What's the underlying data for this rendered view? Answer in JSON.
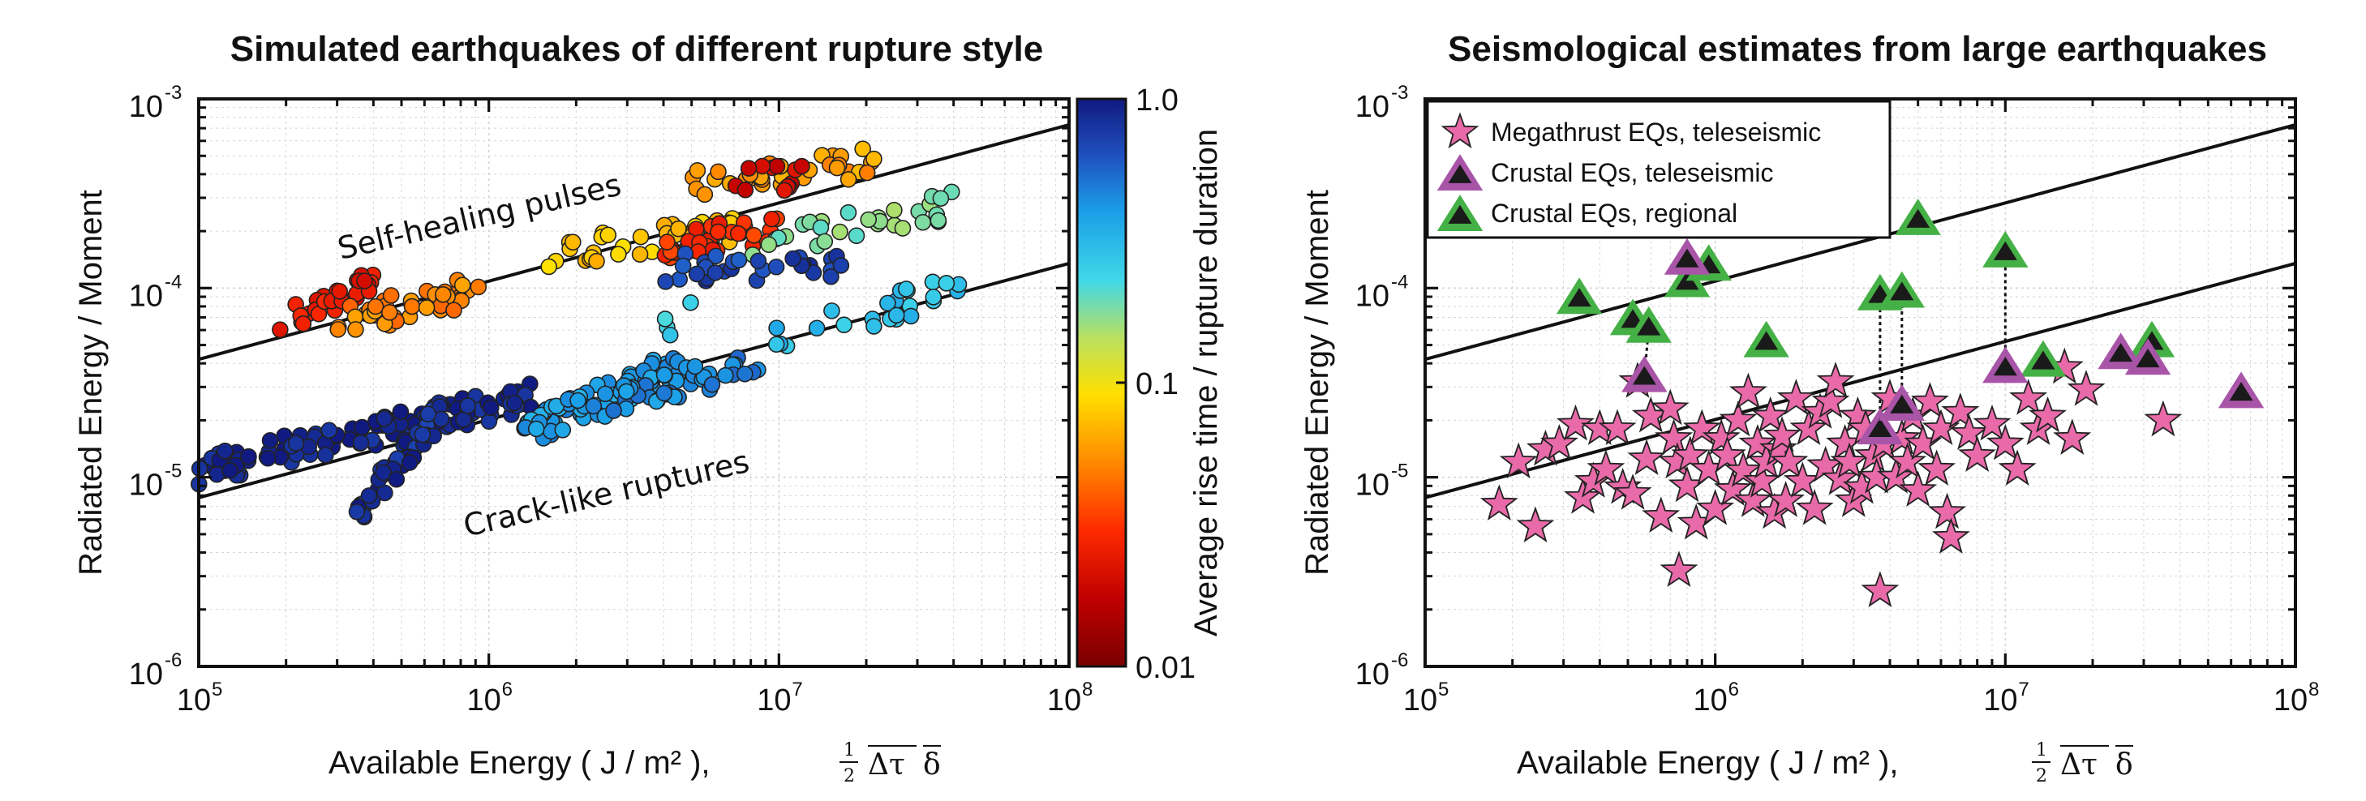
{
  "chart_data": [
    {
      "type": "scatter",
      "title": "Simulated earthquakes of different rupture style",
      "xlabel": "Available Energy ( J / m² ),",
      "xlabel_formula": "½ Δτ δ",
      "ylabel": "Radiated Energy / Moment",
      "xscale": "log",
      "yscale": "log",
      "xlim": [
        100000,
        100000000
      ],
      "ylim": [
        1e-06,
        0.001
      ],
      "grid": true,
      "x_tick_labels": [
        {
          "value": 100000,
          "base": "10",
          "exp": "5"
        },
        {
          "value": 1000000,
          "base": "10",
          "exp": "6"
        },
        {
          "value": 10000000,
          "base": "10",
          "exp": "7"
        },
        {
          "value": 100000000,
          "base": "10",
          "exp": "8"
        }
      ],
      "y_tick_labels": [
        {
          "value": 1e-06,
          "base": "10",
          "exp": "-6"
        },
        {
          "value": 1e-05,
          "base": "10",
          "exp": "-5"
        },
        {
          "value": 0.0001,
          "base": "10",
          "exp": "-4"
        },
        {
          "value": 0.001,
          "base": "10",
          "exp": "-3"
        }
      ],
      "colorbar": {
        "label": "Average rise time / rupture duration",
        "scale": "log",
        "range": [
          0.01,
          1.0
        ],
        "tick_labels": [
          {
            "value": 1.0,
            "label": "1.0"
          },
          {
            "value": 0.1,
            "label": "0.1"
          },
          {
            "value": 0.01,
            "label": "0.01"
          }
        ]
      },
      "reference_lines": [
        {
          "x": [
            100000,
            100000000
          ],
          "y": [
            4.2e-05,
            0.00073
          ]
        },
        {
          "x": [
            100000,
            100000000
          ],
          "y": [
            7.8e-06,
            0.000135
          ]
        }
      ],
      "annotations": [
        "Self-healing pulses",
        "Crack-like ruptures"
      ],
      "clusters": [
        {
          "x_range": [
            190000,
            400000
          ],
          "y_start": 6.5e-05,
          "y_end": 0.00011,
          "c": 0.025,
          "n": 30
        },
        {
          "x_range": [
            300000,
            1000000
          ],
          "y_start": 6.6e-05,
          "y_end": 0.0001,
          "c": 0.05,
          "n": 40
        },
        {
          "x_range": [
            1600000,
            7000000
          ],
          "y_start": 0.00015,
          "y_end": 0.00021,
          "c": 0.075,
          "n": 40
        },
        {
          "x_range": [
            4000000,
            10000000
          ],
          "y_start": 0.00017,
          "y_end": 0.00021,
          "c": 0.03,
          "n": 30
        },
        {
          "x_range": [
            5000000,
            22000000
          ],
          "y_start": 0.00035,
          "y_end": 0.00047,
          "c": 0.06,
          "n": 35
        },
        {
          "x_range": [
            7000000,
            12000000
          ],
          "y_start": 0.00037,
          "y_end": 0.0004,
          "c": 0.02,
          "n": 12
        },
        {
          "x_range": [
            8000000,
            40000000
          ],
          "y_start": 0.00016,
          "y_end": 0.00028,
          "c": 0.17,
          "n": 30
        },
        {
          "x_range": [
            4000000,
            18000000
          ],
          "y_start": 0.00013,
          "y_end": 0.00013,
          "c": 0.7,
          "n": 30
        },
        {
          "x_range": [
            100000,
            1500000
          ],
          "y_start": 1.1e-05,
          "y_end": 2.7e-05,
          "c": 0.95,
          "n": 110
        },
        {
          "x_range": [
            350000,
            700000
          ],
          "y_start": 6.5e-06,
          "y_end": 2.3e-05,
          "c": 0.85,
          "n": 50
        },
        {
          "x_range": [
            1300000,
            4500000
          ],
          "y_start": 1.7e-05,
          "y_end": 4e-05,
          "c": 0.4,
          "n": 70
        },
        {
          "x_range": [
            2500000,
            9000000
          ],
          "y_start": 2.5e-05,
          "y_end": 4e-05,
          "c": 0.45,
          "n": 40
        },
        {
          "x_range": [
            8000000,
            42000000
          ],
          "y_start": 5e-05,
          "y_end": 0.0001,
          "c": 0.3,
          "n": 25
        },
        {
          "x_range": [
            4000000,
            5000000
          ],
          "y_start": 6.2e-05,
          "y_end": 7.2e-05,
          "c": 0.25,
          "n": 4
        }
      ]
    },
    {
      "type": "scatter",
      "title": "Seismological estimates from large earthquakes",
      "xlabel": "Available Energy ( J / m² ),",
      "xlabel_formula": "½ Δτ δ",
      "ylabel": "Radiated Energy / Moment",
      "xscale": "log",
      "yscale": "log",
      "xlim": [
        100000,
        100000000
      ],
      "ylim": [
        1e-06,
        0.001
      ],
      "grid": true,
      "x_tick_labels": [
        {
          "value": 100000,
          "base": "10",
          "exp": "5"
        },
        {
          "value": 1000000,
          "base": "10",
          "exp": "6"
        },
        {
          "value": 10000000,
          "base": "10",
          "exp": "7"
        },
        {
          "value": 100000000,
          "base": "10",
          "exp": "8"
        }
      ],
      "y_tick_labels": [
        {
          "value": 1e-06,
          "base": "10",
          "exp": "-6"
        },
        {
          "value": 1e-05,
          "base": "10",
          "exp": "-5"
        },
        {
          "value": 0.0001,
          "base": "10",
          "exp": "-4"
        },
        {
          "value": 0.001,
          "base": "10",
          "exp": "-3"
        }
      ],
      "legend_position": "top-left",
      "reference_lines": [
        {
          "x": [
            100000,
            100000000
          ],
          "y": [
            4.2e-05,
            0.00073
          ]
        },
        {
          "x": [
            100000,
            100000000
          ],
          "y": [
            7.8e-06,
            0.000135
          ]
        }
      ],
      "series": [
        {
          "name": "Megathrust EQs, teleseismic",
          "marker": "star",
          "color": "#e86aa8",
          "points": [
            [
              180000,
              7.2e-06
            ],
            [
              210000,
              1.2e-05
            ],
            [
              240000,
              5.5e-06
            ],
            [
              260000,
              1.4e-05
            ],
            [
              290000,
              1.5e-05
            ],
            [
              330000,
              1.9e-05
            ],
            [
              350000,
              7.8e-06
            ],
            [
              380000,
              9.5e-06
            ],
            [
              400000,
              1.8e-05
            ],
            [
              420000,
              1.1e-05
            ],
            [
              460000,
              1.8e-05
            ],
            [
              480000,
              8.8e-06
            ],
            [
              520000,
              8.2e-06
            ],
            [
              540000,
              3.2e-05
            ],
            [
              580000,
              1.25e-05
            ],
            [
              600000,
              2.1e-05
            ],
            [
              650000,
              6.2e-06
            ],
            [
              700000,
              2.3e-05
            ],
            [
              720000,
              1.6e-05
            ],
            [
              740000,
              1.2e-05
            ],
            [
              750000,
              3.2e-06
            ],
            [
              800000,
              9e-06
            ],
            [
              820000,
              1.3e-05
            ],
            [
              860000,
              5.7e-06
            ],
            [
              900000,
              1.8e-05
            ],
            [
              950000,
              1.1e-05
            ],
            [
              1000000,
              6.8e-06
            ],
            [
              1050000,
              1.6e-05
            ],
            [
              1100000,
              1.3e-05
            ],
            [
              1150000,
              8.6e-06
            ],
            [
              1200000,
              2e-05
            ],
            [
              1250000,
              1.08e-05
            ],
            [
              1300000,
              2.8e-05
            ],
            [
              1350000,
              7.5e-06
            ],
            [
              1400000,
              1.5e-05
            ],
            [
              1450000,
              9.5e-06
            ],
            [
              1500000,
              1.2e-05
            ],
            [
              1550000,
              2.1e-05
            ],
            [
              1600000,
              6.5e-06
            ],
            [
              1650000,
              1.4e-05
            ],
            [
              1700000,
              1.65e-05
            ],
            [
              1750000,
              7.5e-06
            ],
            [
              1800000,
              1.2e-05
            ],
            [
              1900000,
              2.6e-05
            ],
            [
              2000000,
              9.5e-06
            ],
            [
              2100000,
              1.8e-05
            ],
            [
              2200000,
              6.8e-06
            ],
            [
              2300000,
              2.2e-05
            ],
            [
              2400000,
              1.15e-05
            ],
            [
              2500000,
              2.5e-05
            ],
            [
              2600000,
              3.2e-05
            ],
            [
              2700000,
              9.8e-06
            ],
            [
              2800000,
              1.5e-05
            ],
            [
              2900000,
              1.2e-05
            ],
            [
              3000000,
              7.5e-06
            ],
            [
              3100000,
              2.1e-05
            ],
            [
              3200000,
              8.8e-06
            ],
            [
              3300000,
              1.8e-05
            ],
            [
              3500000,
              1.3e-05
            ],
            [
              3600000,
              1e-05
            ],
            [
              3700000,
              2.5e-06
            ],
            [
              3800000,
              1.5e-05
            ],
            [
              4000000,
              2.6e-05
            ],
            [
              4200000,
              1e-05
            ],
            [
              4400000,
              1.6e-05
            ],
            [
              4600000,
              1.2e-05
            ],
            [
              4800000,
              2.1e-05
            ],
            [
              5000000,
              8.5e-06
            ],
            [
              5200000,
              1.5e-05
            ],
            [
              5500000,
              2.5e-05
            ],
            [
              5800000,
              1.1e-05
            ],
            [
              6000000,
              1.8e-05
            ],
            [
              6300000,
              6.5e-06
            ],
            [
              6500000,
              4.8e-06
            ],
            [
              7000000,
              2.2e-05
            ],
            [
              7500000,
              1.7e-05
            ],
            [
              8000000,
              1.3e-05
            ],
            [
              9000000,
              1.9e-05
            ],
            [
              10000000,
              1.5e-05
            ],
            [
              11000000,
              1.1e-05
            ],
            [
              12000000,
              2.6e-05
            ],
            [
              13000000,
              1.8e-05
            ],
            [
              14000000,
              2.1e-05
            ],
            [
              16000000,
              3.8e-05
            ],
            [
              17000000,
              1.6e-05
            ],
            [
              19000000,
              2.9e-05
            ],
            [
              35000000,
              2e-05
            ]
          ]
        },
        {
          "name": "Crustal EQs, teleseismic",
          "marker": "triangle",
          "color": "#a855a8",
          "points": [
            [
              570000,
              3.4e-05
            ],
            [
              800000,
              0.000142
            ],
            [
              3700000,
              1.8e-05
            ],
            [
              4400000,
              2.4e-05
            ],
            [
              10000000,
              3.8e-05
            ],
            [
              25000000,
              4.5e-05
            ],
            [
              31000000,
              4.2e-05
            ],
            [
              65000000,
              2.8e-05
            ]
          ]
        },
        {
          "name": "Crustal EQs, regional",
          "marker": "triangle",
          "color": "#45b045",
          "points": [
            [
              340000,
              8.8e-05
            ],
            [
              520000,
              6.8e-05
            ],
            [
              590000,
              6.2e-05
            ],
            [
              800000,
              0.000108
            ],
            [
              950000,
              0.000132
            ],
            [
              1500000,
              5.2e-05
            ],
            [
              3700000,
              9.2e-05
            ],
            [
              4400000,
              9.5e-05
            ],
            [
              5000000,
              0.00023
            ],
            [
              10000000,
              0.000155
            ],
            [
              13500000,
              4.1e-05
            ],
            [
              32000000,
              5.2e-05
            ]
          ]
        }
      ],
      "pairs": [
        [
          [
            570000,
            3.4e-05
          ],
          [
            590000,
            6.2e-05
          ]
        ],
        [
          [
            800000,
            0.000142
          ],
          [
            800000,
            0.000108
          ]
        ],
        [
          [
            3700000,
            1.8e-05
          ],
          [
            3700000,
            9.2e-05
          ]
        ],
        [
          [
            4400000,
            2.4e-05
          ],
          [
            4400000,
            9.5e-05
          ]
        ],
        [
          [
            10000000,
            3.8e-05
          ],
          [
            10000000,
            0.000155
          ]
        ]
      ]
    }
  ]
}
